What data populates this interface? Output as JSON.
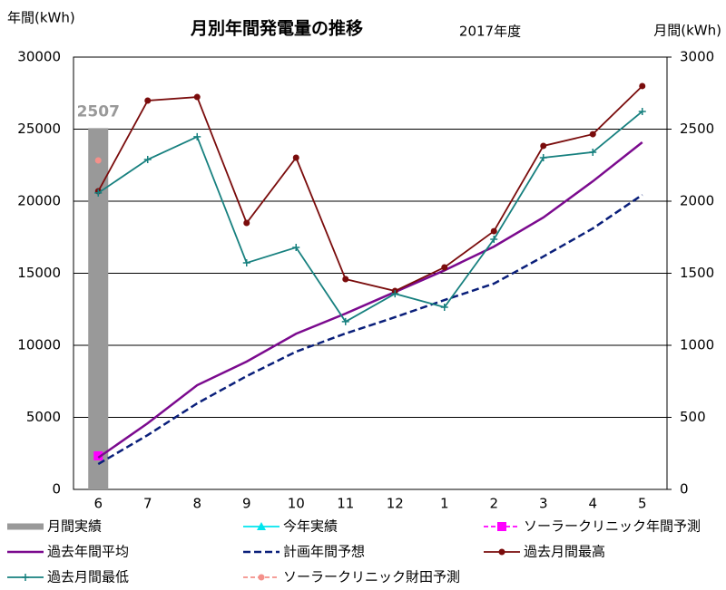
{
  "chart_data": {
    "type": "line",
    "title": "月別年間発電量の推移",
    "subtitle": "2017年度",
    "y_label": "年間(kWh)",
    "y2_label": "月間(kWh)",
    "categories": [
      "6",
      "7",
      "8",
      "9",
      "10",
      "11",
      "12",
      "1",
      "2",
      "3",
      "4",
      "5"
    ],
    "ylim": [
      0,
      30000
    ],
    "yticks": [
      0,
      5000,
      10000,
      15000,
      20000,
      25000,
      30000
    ],
    "y2lim": [
      0,
      3000
    ],
    "y2ticks": [
      0,
      500,
      1000,
      1500,
      2000,
      2500,
      3000
    ],
    "grid": true,
    "legend": "bottom",
    "series": [
      {
        "name": "月間実績",
        "type": "bar",
        "axis": "y2",
        "color": "#999999",
        "values": [
          2507,
          null,
          null,
          null,
          null,
          null,
          null,
          null,
          null,
          null,
          null,
          null
        ]
      },
      {
        "name": "今年実績",
        "type": "line",
        "axis": "y",
        "color": "#00e5ee",
        "marker": "triangle",
        "values": [
          null,
          null,
          null,
          null,
          null,
          null,
          null,
          null,
          null,
          null,
          null,
          null
        ]
      },
      {
        "name": "ソーラークリニック年間予測",
        "type": "line",
        "axis": "y",
        "color": "#ff00ff",
        "marker": "square",
        "dash": "short",
        "values": [
          2330,
          null,
          null,
          null,
          null,
          null,
          null,
          null,
          null,
          null,
          null,
          null
        ]
      },
      {
        "name": "過去年間平均",
        "type": "line",
        "axis": "y",
        "color": "#7b0a8e",
        "width": 2.5,
        "values": [
          2200,
          4590,
          7230,
          8870,
          10800,
          12200,
          13700,
          15200,
          16850,
          18870,
          21380,
          24090
        ]
      },
      {
        "name": "計画年間予想",
        "type": "line",
        "axis": "y",
        "color": "#0a1f7a",
        "width": 2.5,
        "dash": "long",
        "values": [
          1760,
          3770,
          5970,
          7860,
          9560,
          10820,
          11950,
          13140,
          14280,
          16160,
          18110,
          20440
        ]
      },
      {
        "name": "過去月間最高",
        "type": "line",
        "axis": "y2",
        "color": "#7a0c0c",
        "marker": "circle",
        "values": [
          2069,
          2698,
          2723,
          1849,
          2302,
          1459,
          1377,
          1541,
          1792,
          2384,
          2465,
          2799
        ]
      },
      {
        "name": "過去月間最低",
        "type": "line",
        "axis": "y2",
        "color": "#17807f",
        "marker": "plus",
        "values": [
          2057,
          2289,
          2447,
          1572,
          1679,
          1164,
          1358,
          1264,
          1736,
          2302,
          2340,
          2623
        ]
      },
      {
        "name": "ソーラークリニック財田予測",
        "type": "line",
        "axis": "y2",
        "color": "#f4908a",
        "marker": "circle",
        "dash": "short",
        "values": [
          2283,
          null,
          null,
          null,
          null,
          null,
          null,
          null,
          null,
          null,
          null,
          null
        ]
      }
    ]
  }
}
